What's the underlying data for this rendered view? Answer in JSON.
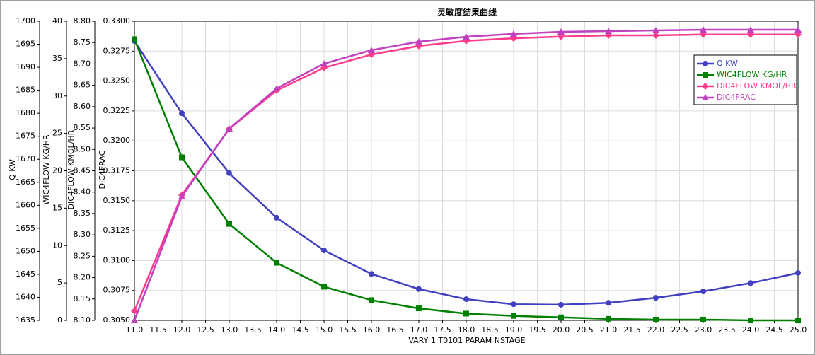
{
  "chart_data": {
    "type": "line",
    "title": "灵敏度结果曲线",
    "xlabel": "VARY   1 T0101 PARAM NSTAGE",
    "x": [
      11,
      12,
      13,
      14,
      15,
      16,
      17,
      18,
      19,
      20,
      21,
      22,
      23,
      24,
      25
    ],
    "xlim": [
      11,
      25
    ],
    "xticks": [
      {
        "value": 11,
        "label": "11.0"
      },
      11.5,
      {
        "value": 12,
        "label": "12.0"
      },
      12.5,
      {
        "value": 13,
        "label": "13.0"
      },
      13.5,
      {
        "value": 14,
        "label": "14.0"
      },
      14.5,
      {
        "value": 15,
        "label": "15.0"
      },
      15.5,
      {
        "value": 16,
        "label": "16.0"
      },
      16.5,
      {
        "value": 17,
        "label": "17.0"
      },
      17.5,
      {
        "value": 18,
        "label": "18.0"
      },
      18.5,
      {
        "value": 19,
        "label": "19.0"
      },
      19.5,
      {
        "value": 20,
        "label": "20.0"
      },
      20.5,
      {
        "value": 21,
        "label": "21.0"
      },
      21.5,
      {
        "value": 22,
        "label": "22.0"
      },
      22.5,
      {
        "value": 23,
        "label": "23.0"
      },
      23.5,
      {
        "value": 24,
        "label": "24.0"
      },
      24.5,
      {
        "value": 25,
        "label": "25.0"
      }
    ],
    "y_axes": [
      {
        "label": "Q KW",
        "ylim": [
          1635,
          1700
        ],
        "yticks": [
          1635,
          1640,
          1645,
          1650,
          1655,
          1660,
          1665,
          1670,
          1675,
          1680,
          1685,
          1690,
          1695,
          1700
        ]
      },
      {
        "label": "WIC4FLOW KG/HR",
        "ylim": [
          0,
          40
        ],
        "yticks": [
          0,
          5,
          10,
          15,
          20,
          25,
          30,
          35,
          40
        ]
      },
      {
        "label": "DIC4FLOW KMOL/HR",
        "ylim": [
          8.1,
          8.8
        ],
        "yticks": [
          {
            "value": 8.1,
            "label": "8.10"
          },
          8.15,
          {
            "value": 8.2,
            "label": "8.20"
          },
          8.25,
          {
            "value": 8.3,
            "label": "8.30"
          },
          8.35,
          {
            "value": 8.4,
            "label": "8.40"
          },
          8.45,
          {
            "value": 8.5,
            "label": "8.50"
          },
          8.55,
          {
            "value": 8.6,
            "label": "8.60"
          },
          8.65,
          {
            "value": 8.7,
            "label": "8.70"
          },
          8.75,
          {
            "value": 8.8,
            "label": "8.80"
          }
        ]
      },
      {
        "label": "DIC4FRAC",
        "ylim": [
          0.305,
          0.33
        ],
        "yticks": [
          {
            "value": 0.305,
            "label": "0.3050"
          },
          0.3075,
          {
            "value": 0.31,
            "label": "0.3100"
          },
          0.3125,
          {
            "value": 0.315,
            "label": "0.3150"
          },
          0.3175,
          {
            "value": 0.32,
            "label": "0.3200"
          },
          0.3225,
          {
            "value": 0.325,
            "label": "0.3250"
          },
          0.3275,
          {
            "value": 0.33,
            "label": "0.3300"
          }
        ]
      }
    ],
    "grid": true,
    "legend": "upper right",
    "series": [
      {
        "name": "Q KW",
        "color": "#4040c0",
        "marker": "circle",
        "axis": 0,
        "values": [
          1695.7,
          1680.0,
          1667.0,
          1657.3,
          1650.2,
          1645.1,
          1641.8,
          1639.6,
          1638.5,
          1638.4,
          1638.8,
          1639.9,
          1641.3,
          1643.1,
          1645.3
        ]
      },
      {
        "name": "WIC4FLOW KG/HR",
        "color": "#008000",
        "marker": "square",
        "axis": 1,
        "values": [
          37.6,
          21.8,
          12.9,
          7.7,
          4.5,
          2.7,
          1.6,
          0.9,
          0.6,
          0.4,
          0.2,
          0.1,
          0.1,
          0,
          0
        ]
      },
      {
        "name": "DIC4FLOW KMOL/HR",
        "color": "#ff3c8c",
        "marker": "diamond",
        "axis": 2,
        "values": [
          8.122,
          8.393,
          8.548,
          8.638,
          8.691,
          8.722,
          8.742,
          8.754,
          8.76,
          8.764,
          8.767,
          8.767,
          8.769,
          8.769,
          8.769
        ]
      },
      {
        "name": "DIC4FRAC",
        "color": "#c040c0",
        "marker": "triangle",
        "axis": 3,
        "values": [
          0.305,
          0.31534,
          0.32102,
          0.32438,
          0.32645,
          0.32758,
          0.32829,
          0.3287,
          0.32894,
          0.32911,
          0.32917,
          0.32923,
          0.32929,
          0.32929,
          0.32929
        ]
      }
    ]
  }
}
